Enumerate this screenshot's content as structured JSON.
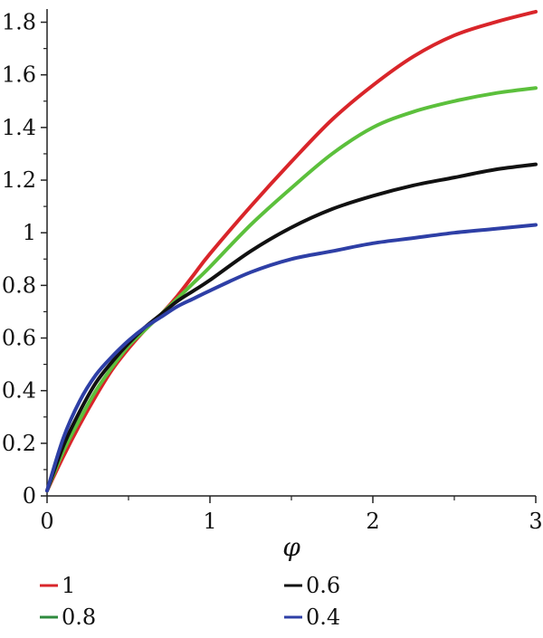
{
  "chart_data": {
    "type": "line",
    "xlabel": "φ",
    "ylabel": "",
    "xlim": [
      0,
      3
    ],
    "ylim": [
      0,
      1.85
    ],
    "x_ticks": [
      0,
      1,
      2,
      3
    ],
    "y_ticks": [
      0,
      0.2,
      0.4,
      0.6,
      0.8,
      1,
      1.2,
      1.4,
      1.6,
      1.8
    ],
    "x_tick_labels": [
      "0",
      "1",
      "2",
      "3"
    ],
    "y_tick_labels": [
      "0",
      "0.2",
      "0.4",
      "0.6",
      "0.8",
      "1",
      "1.2",
      "1.4",
      "1.6",
      "1.8"
    ],
    "grid": false,
    "legend_position": "bottom",
    "x": [
      0,
      0.1,
      0.2,
      0.3,
      0.4,
      0.5,
      0.6,
      0.7,
      0.8,
      0.9,
      1,
      1.25,
      1.5,
      1.75,
      2,
      2.25,
      2.5,
      2.75,
      3
    ],
    "series": [
      {
        "name": "1",
        "color": "#d9252a",
        "values": [
          0.02,
          0.15,
          0.27,
          0.38,
          0.48,
          0.56,
          0.63,
          0.69,
          0.76,
          0.84,
          0.92,
          1.1,
          1.27,
          1.43,
          1.56,
          1.67,
          1.75,
          1.8,
          1.84
        ]
      },
      {
        "name": "0.8",
        "color": "#5cc03c",
        "values": [
          0.02,
          0.17,
          0.29,
          0.4,
          0.49,
          0.57,
          0.63,
          0.69,
          0.75,
          0.81,
          0.87,
          1.03,
          1.17,
          1.3,
          1.4,
          1.46,
          1.5,
          1.53,
          1.55
        ]
      },
      {
        "name": "0.6",
        "color": "#111111",
        "values": [
          0.02,
          0.19,
          0.32,
          0.43,
          0.51,
          0.58,
          0.64,
          0.69,
          0.74,
          0.78,
          0.82,
          0.93,
          1.02,
          1.09,
          1.14,
          1.18,
          1.21,
          1.24,
          1.26
        ]
      },
      {
        "name": "0.4",
        "color": "#2e3fa6",
        "values": [
          0.02,
          0.22,
          0.36,
          0.46,
          0.53,
          0.59,
          0.64,
          0.68,
          0.72,
          0.75,
          0.78,
          0.85,
          0.9,
          0.93,
          0.96,
          0.98,
          1.0,
          1.015,
          1.03
        ]
      }
    ]
  },
  "legend": [
    {
      "label": "1",
      "color": "#d9252a"
    },
    {
      "label": "0.6",
      "color": "#111111"
    },
    {
      "label": "0.8",
      "color": "#2e8b3e"
    },
    {
      "label": "0.4",
      "color": "#2e3fa6"
    }
  ]
}
